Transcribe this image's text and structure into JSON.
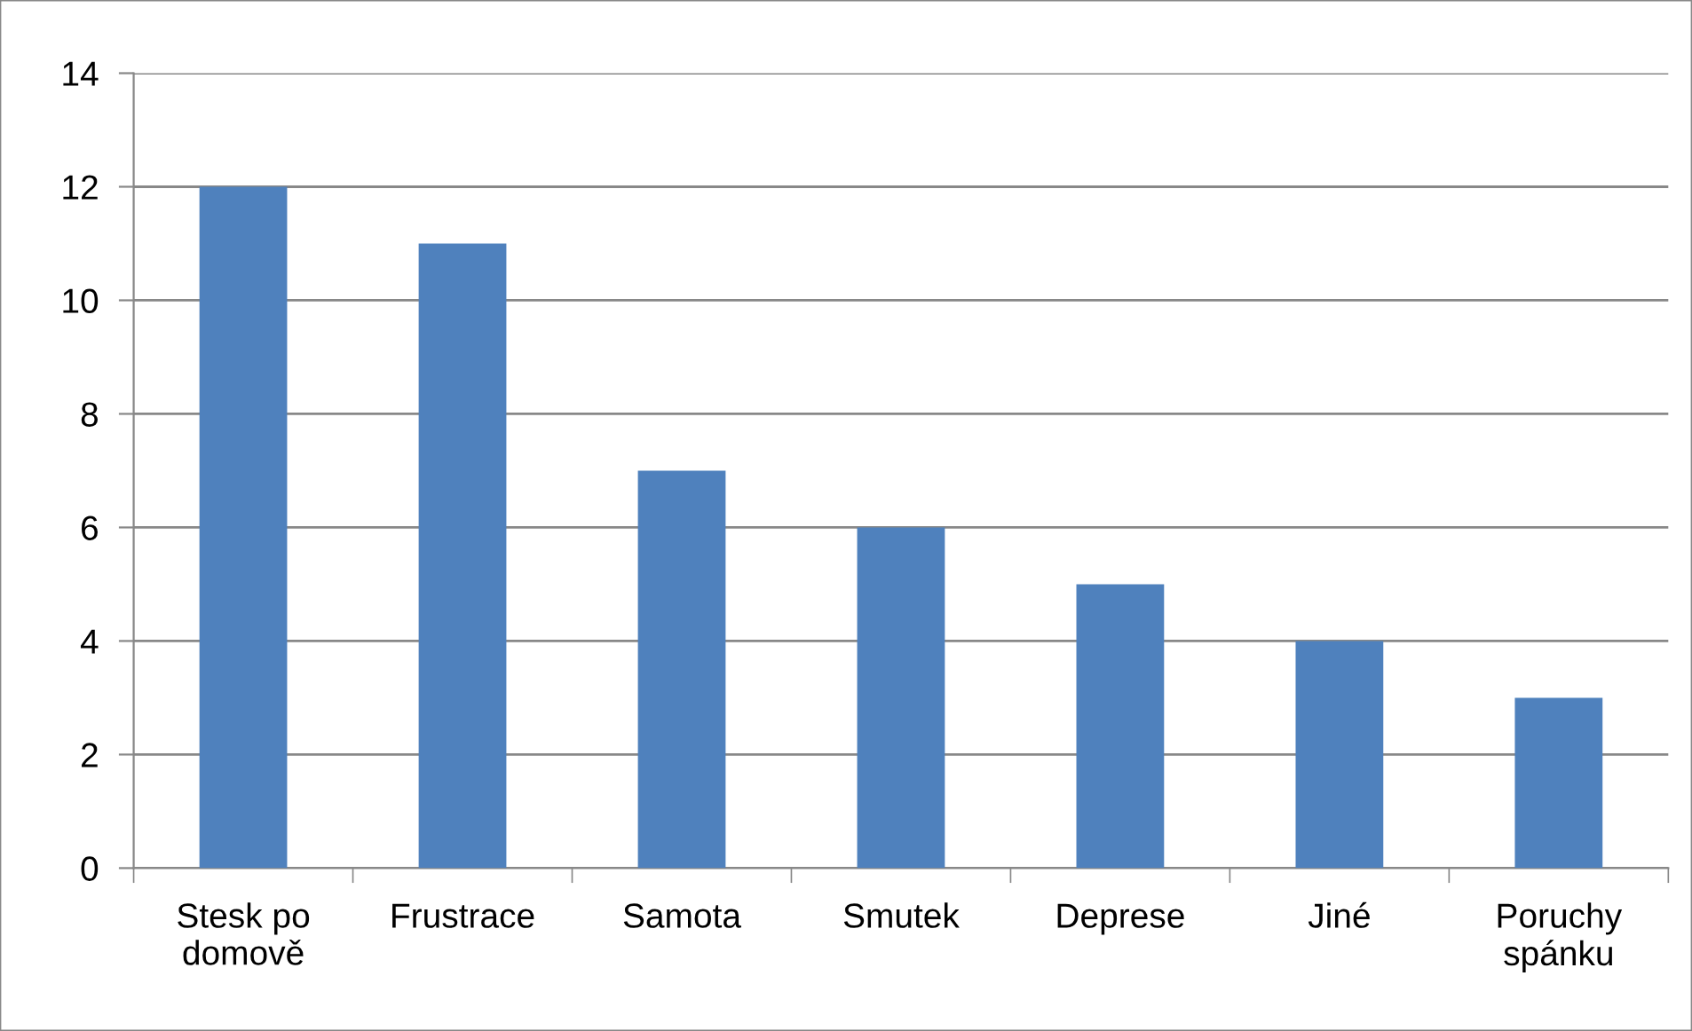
{
  "chart_data": {
    "type": "bar",
    "categories": [
      "Stesk po\ndomově",
      "Frustrace",
      "Samota",
      "Smutek",
      "Deprese",
      "Jiné",
      "Poruchy\nspánku"
    ],
    "values": [
      12,
      11,
      7,
      6,
      5,
      4,
      3
    ],
    "color": "#4f81bd",
    "ylim": [
      0,
      14
    ],
    "yticks": [
      0,
      2,
      4,
      6,
      8,
      10,
      12,
      14
    ],
    "grid": "y",
    "legend": false
  }
}
